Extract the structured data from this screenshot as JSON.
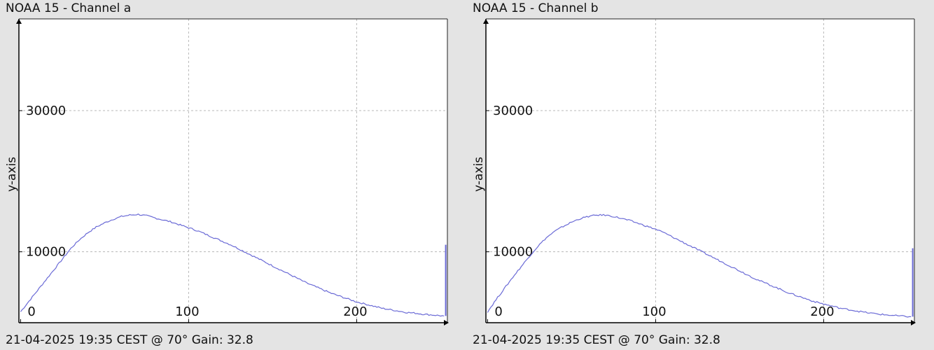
{
  "chart_data": [
    {
      "type": "line",
      "title": "NOAA 15 - Channel a",
      "footer": "21-04-2025 19:35 CEST @ 70° Gain: 32.8",
      "ylabel": "y-axis",
      "xlabel": "",
      "xlim": [
        -1,
        254
      ],
      "ylim": [
        -50,
        43000
      ],
      "xticks": [
        0,
        100,
        200
      ],
      "yticks": [
        10000,
        30000
      ],
      "grid": true,
      "color": "#6a6ad6",
      "x": [
        0,
        5,
        10,
        15,
        20,
        25,
        30,
        35,
        40,
        45,
        50,
        55,
        60,
        65,
        70,
        75,
        80,
        85,
        90,
        95,
        100,
        105,
        110,
        115,
        120,
        125,
        130,
        135,
        140,
        145,
        150,
        155,
        160,
        165,
        170,
        175,
        180,
        185,
        190,
        195,
        200,
        205,
        210,
        215,
        220,
        225,
        230,
        235,
        240,
        245,
        252
      ],
      "y": [
        1500,
        3000,
        4500,
        6000,
        7500,
        9000,
        10500,
        11700,
        12700,
        13500,
        14100,
        14600,
        15000,
        15200,
        15300,
        15100,
        14800,
        14500,
        14200,
        13800,
        13400,
        13000,
        12500,
        12000,
        11500,
        11000,
        10400,
        9800,
        9200,
        8600,
        8000,
        7400,
        6800,
        6200,
        5600,
        5100,
        4600,
        4100,
        3700,
        3300,
        2900,
        2600,
        2300,
        2000,
        1800,
        1600,
        1400,
        1300,
        1150,
        1050,
        900
      ],
      "end_spike": {
        "x": 253,
        "y": 11000
      }
    },
    {
      "type": "line",
      "title": "NOAA 15 - Channel b",
      "footer": "21-04-2025 19:35 CEST @ 70° Gain: 32.8",
      "ylabel": "y-axis",
      "xlabel": "",
      "xlim": [
        -1,
        254
      ],
      "ylim": [
        -50,
        43000
      ],
      "xticks": [
        0,
        100,
        200
      ],
      "yticks": [
        10000,
        30000
      ],
      "grid": true,
      "color": "#6a6ad6",
      "x": [
        0,
        5,
        10,
        15,
        20,
        25,
        30,
        35,
        40,
        45,
        50,
        55,
        60,
        65,
        70,
        75,
        80,
        85,
        90,
        95,
        100,
        105,
        110,
        115,
        120,
        125,
        130,
        135,
        140,
        145,
        150,
        155,
        160,
        165,
        170,
        175,
        180,
        185,
        190,
        195,
        200,
        205,
        210,
        215,
        220,
        225,
        230,
        235,
        240,
        245,
        252
      ],
      "y": [
        1500,
        3200,
        4800,
        6400,
        7900,
        9400,
        10800,
        12000,
        12900,
        13600,
        14200,
        14700,
        15000,
        15200,
        15200,
        15000,
        14700,
        14400,
        14000,
        13600,
        13200,
        12700,
        12100,
        11500,
        10900,
        10300,
        9700,
        9100,
        8500,
        7900,
        7300,
        6700,
        6100,
        5600,
        5100,
        4600,
        4100,
        3700,
        3300,
        2900,
        2600,
        2300,
        2000,
        1800,
        1600,
        1400,
        1250,
        1100,
        1000,
        900,
        800
      ],
      "end_spike": {
        "x": 253,
        "y": 10500
      }
    }
  ]
}
